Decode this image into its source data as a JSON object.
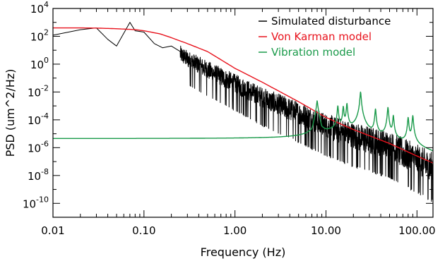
{
  "chart_data": {
    "type": "line",
    "title": "",
    "xlabel": "Frequency (Hz)",
    "ylabel": "PSD (um^2/Hz)",
    "xscale": "log",
    "yscale": "log",
    "xlim": [
      0.01,
      150
    ],
    "ylim": [
      1e-11,
      10000
    ],
    "x_ticks": [
      {
        "value": 0.01,
        "label": "0.01"
      },
      {
        "value": 0.1,
        "label": "0.10"
      },
      {
        "value": 1,
        "label": "1.00"
      },
      {
        "value": 10,
        "label": "10.00"
      },
      {
        "value": 100,
        "label": "100.00"
      }
    ],
    "y_ticks": [
      {
        "value": 1e-10,
        "base": "10",
        "exp": "-10"
      },
      {
        "value": 1e-08,
        "base": "10",
        "exp": "-8"
      },
      {
        "value": 1e-06,
        "base": "10",
        "exp": "-6"
      },
      {
        "value": 0.0001,
        "base": "10",
        "exp": "-4"
      },
      {
        "value": 0.01,
        "base": "10",
        "exp": "-2"
      },
      {
        "value": 1,
        "base": "10",
        "exp": "0"
      },
      {
        "value": 100,
        "base": "10",
        "exp": "2"
      },
      {
        "value": 10000,
        "base": "10",
        "exp": "4"
      }
    ],
    "grid": false,
    "legend_position": "top-right",
    "series": [
      {
        "name": "Simulated disturbance",
        "color": "#000000",
        "style": "noisy",
        "x": [
          0.01,
          0.02,
          0.03,
          0.04,
          0.05,
          0.07,
          0.08,
          0.1,
          0.13,
          0.16,
          0.2,
          0.3,
          0.5,
          1,
          2,
          5,
          10,
          20,
          50,
          100,
          150
        ],
        "y": [
          120,
          300,
          400,
          60,
          20,
          1000,
          250,
          200,
          30,
          15,
          20,
          3,
          0.5,
          0.05,
          0.005,
          0.0004,
          5e-05,
          1e-05,
          2e-06,
          2e-07,
          5e-08
        ]
      },
      {
        "name": "Von Karman model",
        "color": "#e8121c",
        "style": "smooth",
        "x": [
          0.01,
          0.02,
          0.03,
          0.05,
          0.08,
          0.1,
          0.15,
          0.2,
          0.3,
          0.5,
          1,
          2,
          5,
          10,
          20,
          50,
          100,
          150
        ],
        "y": [
          400,
          400,
          390,
          350,
          300,
          250,
          150,
          80,
          30,
          8,
          0.5,
          0.05,
          0.002,
          0.00015,
          2e-05,
          2e-06,
          2.5e-07,
          8e-08
        ]
      },
      {
        "name": "Vibration model",
        "color": "#1a9a4a",
        "style": "smooth",
        "baseline": 2.2e-06,
        "x": [
          0.01,
          0.1,
          1,
          2,
          3,
          4,
          5,
          6,
          7,
          8,
          9,
          10,
          20,
          30,
          50,
          100,
          150
        ],
        "y": [
          2.2e-06,
          2.2e-06,
          2.3e-06,
          2.4e-06,
          2.5e-06,
          2.8e-06,
          3.3e-06,
          4.5e-06,
          8.5e-06,
          0.0012,
          1.8e-05,
          1.1e-05,
          9e-06,
          5e-06,
          3e-06,
          1e-06,
          4e-07
        ],
        "peaks": [
          {
            "x": 8,
            "y": 0.0012
          },
          {
            "x": 13.5,
            "y": 0.001
          },
          {
            "x": 15.5,
            "y": 0.0009
          },
          {
            "x": 17,
            "y": 0.0015
          },
          {
            "x": 24,
            "y": 0.01
          },
          {
            "x": 35,
            "y": 0.0006
          },
          {
            "x": 48,
            "y": 0.0008
          },
          {
            "x": 55,
            "y": 0.0002
          },
          {
            "x": 80,
            "y": 0.00015
          },
          {
            "x": 90,
            "y": 0.0002
          }
        ]
      }
    ]
  }
}
